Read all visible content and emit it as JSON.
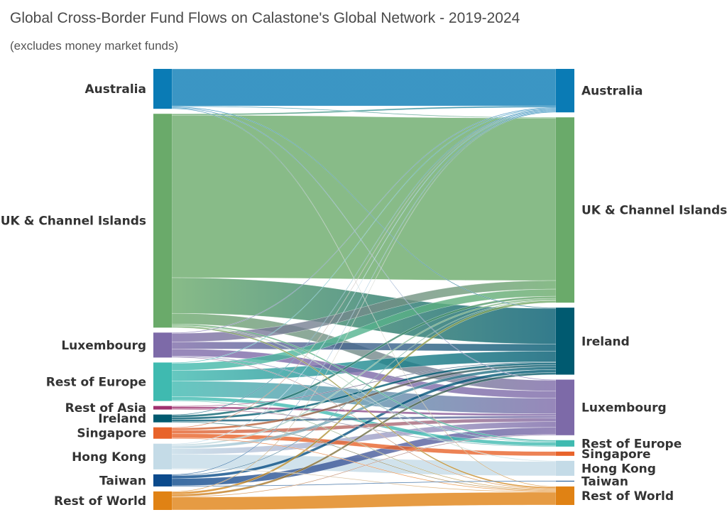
{
  "chart_data": {
    "type": "sankey",
    "title": "Global Cross-Border Fund Flows on Calastone's Global Network - 2019-2024",
    "subtitle": "(excludes money market funds)",
    "source_nodes": [
      {
        "id": "Australia",
        "label": "Australia",
        "color": "#0a7bb5"
      },
      {
        "id": "UK",
        "label": "UK & Channel Islands",
        "color": "#6aaa6a"
      },
      {
        "id": "Luxembourg",
        "label": "Luxembourg",
        "color": "#7d6aa8"
      },
      {
        "id": "RestEurope",
        "label": "Rest of Europe",
        "color": "#3fbab0"
      },
      {
        "id": "RestAsia",
        "label": "Rest of Asia",
        "color": "#a0306e"
      },
      {
        "id": "Ireland",
        "label": "Ireland",
        "color": "#005a70"
      },
      {
        "id": "Singapore",
        "label": "Singapore",
        "color": "#e8632a"
      },
      {
        "id": "HongKong",
        "label": "Hong Kong",
        "color": "#c4dbe7"
      },
      {
        "id": "Taiwan",
        "label": "Taiwan",
        "color": "#0b4a8c"
      },
      {
        "id": "RestWorld",
        "label": "Rest of World",
        "color": "#e08214"
      }
    ],
    "target_nodes": [
      {
        "id": "Australia",
        "label": "Australia",
        "color": "#0a7bb5"
      },
      {
        "id": "UK",
        "label": "UK & Channel Islands",
        "color": "#6aaa6a"
      },
      {
        "id": "Ireland",
        "label": "Ireland",
        "color": "#005a70"
      },
      {
        "id": "Luxembourg",
        "label": "Luxembourg",
        "color": "#7d6aa8"
      },
      {
        "id": "RestEurope",
        "label": "Rest of Europe",
        "color": "#3fbab0"
      },
      {
        "id": "Singapore",
        "label": "Singapore",
        "color": "#e8632a"
      },
      {
        "id": "HongKong",
        "label": "Hong Kong",
        "color": "#c4dbe7"
      },
      {
        "id": "Taiwan",
        "label": "Taiwan",
        "color": "#0b4a8c"
      },
      {
        "id": "RestWorld",
        "label": "Rest of World",
        "color": "#e08214"
      }
    ],
    "links": [
      [
        "Australia",
        "Australia",
        52
      ],
      [
        "Australia",
        "UK",
        1
      ],
      [
        "Australia",
        "Ireland",
        1
      ],
      [
        "Australia",
        "Luxembourg",
        1
      ],
      [
        "Australia",
        "RestWorld",
        1
      ],
      [
        "UK",
        "Australia",
        2
      ],
      [
        "UK",
        "UK",
        228
      ],
      [
        "UK",
        "Ireland",
        50
      ],
      [
        "UK",
        "Luxembourg",
        15
      ],
      [
        "UK",
        "RestEurope",
        2
      ],
      [
        "UK",
        "HongKong",
        1
      ],
      [
        "UK",
        "RestWorld",
        2
      ],
      [
        "Luxembourg",
        "Australia",
        1
      ],
      [
        "Luxembourg",
        "UK",
        12
      ],
      [
        "Luxembourg",
        "Ireland",
        10
      ],
      [
        "Luxembourg",
        "Luxembourg",
        10
      ],
      [
        "Luxembourg",
        "RestEurope",
        1
      ],
      [
        "Luxembourg",
        "RestWorld",
        1
      ],
      [
        "RestEurope",
        "Australia",
        1
      ],
      [
        "RestEurope",
        "UK",
        10
      ],
      [
        "RestEurope",
        "Ireland",
        15
      ],
      [
        "RestEurope",
        "Luxembourg",
        22
      ],
      [
        "RestEurope",
        "RestEurope",
        5
      ],
      [
        "RestEurope",
        "RestWorld",
        1
      ],
      [
        "RestAsia",
        "Ireland",
        1
      ],
      [
        "RestAsia",
        "Luxembourg",
        3
      ],
      [
        "RestAsia",
        "RestEurope",
        1
      ],
      [
        "Ireland",
        "Australia",
        1
      ],
      [
        "Ireland",
        "UK",
        3
      ],
      [
        "Ireland",
        "Ireland",
        3
      ],
      [
        "Ireland",
        "Luxembourg",
        3
      ],
      [
        "Ireland",
        "RestWorld",
        1
      ],
      [
        "Singapore",
        "Australia",
        1
      ],
      [
        "Singapore",
        "Ireland",
        3
      ],
      [
        "Singapore",
        "Luxembourg",
        5
      ],
      [
        "Singapore",
        "Singapore",
        6
      ],
      [
        "Singapore",
        "RestWorld",
        1
      ],
      [
        "HongKong",
        "Australia",
        1
      ],
      [
        "HongKong",
        "UK",
        2
      ],
      [
        "HongKong",
        "Ireland",
        4
      ],
      [
        "HongKong",
        "Luxembourg",
        8
      ],
      [
        "HongKong",
        "HongKong",
        20
      ],
      [
        "HongKong",
        "RestWorld",
        1
      ],
      [
        "Taiwan",
        "Australia",
        1
      ],
      [
        "Taiwan",
        "UK",
        1
      ],
      [
        "Taiwan",
        "Ireland",
        4
      ],
      [
        "Taiwan",
        "Luxembourg",
        10
      ],
      [
        "Taiwan",
        "Taiwan",
        1
      ],
      [
        "RestWorld",
        "Australia",
        1
      ],
      [
        "RestWorld",
        "UK",
        3
      ],
      [
        "RestWorld",
        "Ireland",
        3
      ],
      [
        "RestWorld",
        "Luxembourg",
        1
      ],
      [
        "RestWorld",
        "RestWorld",
        18
      ]
    ]
  }
}
